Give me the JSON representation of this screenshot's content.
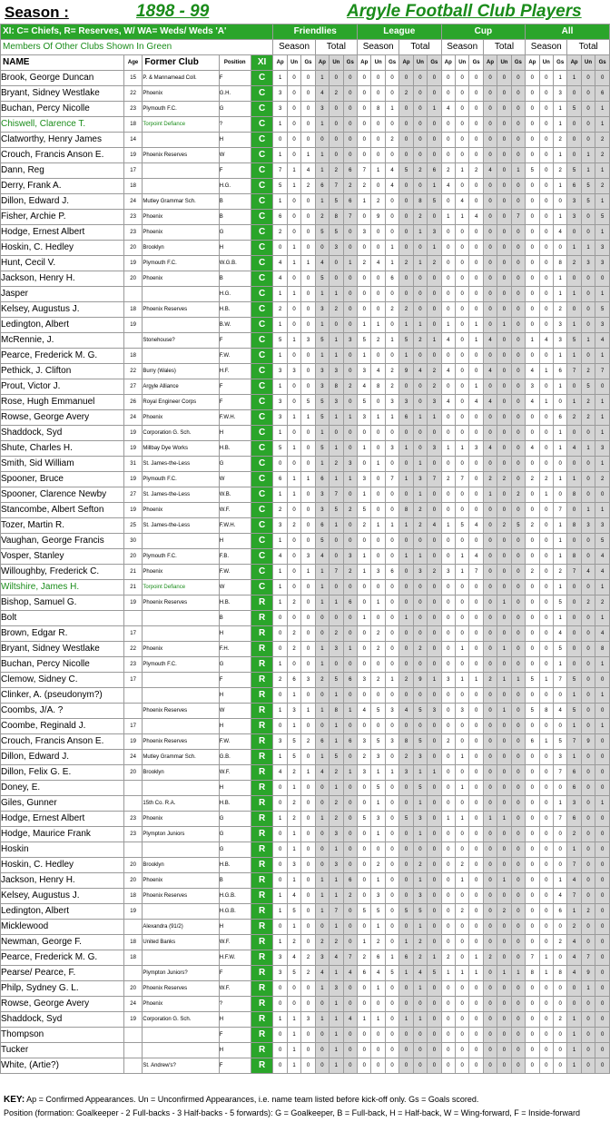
{
  "header": {
    "season_label": "Season :",
    "season_value": "1898 - 99",
    "club_title": "Argyle Football Club Players"
  },
  "legend_bar": "XI: C= Chiefs, R= Reserves, W/ WA= Weds/ Weds 'A'",
  "green_note": "Members Of Other Clubs Shown In Green",
  "sections": [
    "Friendlies",
    "League",
    "Cup",
    "All"
  ],
  "section_sub": [
    "Season",
    "Total"
  ],
  "columns": {
    "name": "NAME",
    "age": "Age",
    "club": "Former Club",
    "position": "Position",
    "xi": "XI",
    "stats": [
      "Ap",
      "Un",
      "Gs"
    ]
  },
  "colors": {
    "green": "#2aa52a",
    "green_text": "#1a8c1a",
    "total_shade": "#d4d4d4"
  },
  "rows": [
    {
      "n": "Brook, George Duncan",
      "a": "15",
      "c": "P. & Mannamead Coll.",
      "p": "F",
      "x": "C",
      "s": "100100000000000000001100"
    },
    {
      "n": "Bryant, Sidney Westlake",
      "a": "22",
      "c": "Phoenix",
      "p": "G.H.",
      "x": "C",
      "s": "300420000200000000003006"
    },
    {
      "n": "Buchan, Percy Nicolle",
      "a": "23",
      "c": "Plymouth F.C.",
      "p": "G",
      "x": "C",
      "s": "3003000810014000000015010"
    },
    {
      "n": "Chiswell, Clarence T.",
      "a": "18",
      "c": "Torpoint Defiance",
      "p": "?",
      "x": "C",
      "g": true,
      "s": "100100000000000000001001"
    },
    {
      "n": "Clatworthy, Henry James",
      "a": "14",
      "c": "",
      "p": "H",
      "x": "C",
      "s": "000000002000000000002002"
    },
    {
      "n": "Crouch, Francis Anson E.",
      "a": "19",
      "c": "Phoenix Reserves",
      "p": "W",
      "x": "C",
      "s": "101100000000000000001012"
    },
    {
      "n": "Dann, Reg",
      "a": "17",
      "c": "",
      "p": "F",
      "x": "C",
      "s": "7141267145262124015025110436"
    },
    {
      "n": "Derry, Frank A.",
      "a": "18",
      "c": "",
      "p": "H.G.",
      "x": "C",
      "s": "5126722040014000000016525"
    },
    {
      "n": "Dillon, Edward J.",
      "a": "24",
      "c": "Mutley Grammar Sch.",
      "p": "B",
      "x": "C",
      "s": "100156120085040000000351130"
    },
    {
      "n": "Fisher, Archie P.",
      "a": "23",
      "c": "Phoenix",
      "p": "B",
      "x": "C",
      "s": "6002870900201140070013055"
    },
    {
      "n": "Hodge, Ernest Albert",
      "a": "23",
      "c": "Phoenix",
      "p": "G",
      "x": "C",
      "s": "200550300013000000004001900"
    },
    {
      "n": "Hoskin, C. Hedley",
      "a": "20",
      "c": "Brooklyn",
      "p": "H",
      "x": "C",
      "s": "010030001001000000000113"
    },
    {
      "n": "Hunt, Cecil V.",
      "a": "19",
      "c": "Plymouth F.C.",
      "p": "W.G.B.",
      "x": "C",
      "s": "4114012412120000000082338"
    },
    {
      "n": "Jackson, Henry H.",
      "a": "20",
      "c": "Phoenix",
      "p": "B",
      "x": "C",
      "s": "40050000600000000000100011"
    },
    {
      "n": "Jasper",
      "a": "",
      "c": "",
      "p": "H.G.",
      "x": "C",
      "s": "110110000000000000001101"
    },
    {
      "n": "Kelsey, Augustus J.",
      "a": "18",
      "c": "Phoenix Reserves",
      "p": "H.B.",
      "x": "C",
      "s": "200320002200000000002005"
    },
    {
      "n": "Ledington, Albert",
      "a": "19",
      "c": "",
      "p": "B.W.",
      "x": "C",
      "s": "100100110110101010003103"
    },
    {
      "n": "McRennie, J.",
      "a": "",
      "c": "Stonehouse?",
      "p": "F",
      "x": "C",
      "s": "5135135215214014001435145"
    },
    {
      "n": "Pearce, Frederick M. G.",
      "a": "18",
      "c": "",
      "p": "F.W.",
      "x": "C",
      "s": "100110100100000000001101"
    },
    {
      "n": "Pethick, J. Clifton",
      "a": "22",
      "c": "Burry (Wales)",
      "p": "H.F.",
      "x": "C",
      "s": "3303303429424004004167276"
    },
    {
      "n": "Prout, Victor J.",
      "a": "27",
      "c": "Argyle Alliance",
      "p": "F",
      "x": "C",
      "s": "1003824820020010003010502511"
    },
    {
      "n": "Rose, Hugh Emmanuel",
      "a": "26",
      "c": "Royal Engineer Corps",
      "p": "F",
      "x": "C",
      "s": "30553050330340440041012100"
    },
    {
      "n": "Rowse, George Avery",
      "a": "24",
      "c": "Phoenix",
      "p": "F.W.H.",
      "x": "C",
      "s": "3115113116110000000062211"
    },
    {
      "n": "Shaddock, Syd",
      "a": "19",
      "c": "Corporation G. Sch.",
      "p": "H",
      "x": "C",
      "s": "100100000000000000001001"
    },
    {
      "n": "Shute, Charles H.",
      "a": "19",
      "c": "Millbay Dye Works",
      "p": "H.B.",
      "x": "C",
      "s": "51051010310311340040141349"
    },
    {
      "n": "Smith, Sid William",
      "a": "31",
      "c": "St. James-the-Less",
      "p": "G",
      "x": "C",
      "s": "000123010010000000000001400"
    },
    {
      "n": "Spooner, Bruce",
      "a": "19",
      "c": "Plymouth F.C.",
      "p": "W",
      "x": "C",
      "s": "6116113071372702202211021"
    },
    {
      "n": "Spooner, Clarence Newby",
      "a": "27",
      "c": "St. James-the-Less",
      "p": "W.B.",
      "x": "C",
      "s": "1103701000100001020108"
    },
    {
      "n": "Stancombe, Albert Sefton",
      "a": "19",
      "c": "Phoenix",
      "p": "W.F.",
      "x": "C",
      "s": "2003525008200000000070117"
    },
    {
      "n": "Tozer, Martin R.",
      "a": "25",
      "c": "St. James-the-Less",
      "p": "F.W.H.",
      "x": "C",
      "s": "32061021112415402520183335"
    },
    {
      "n": "Vaughan, George Francis",
      "a": "30",
      "c": "",
      "p": "H",
      "x": "C",
      "s": "100500000000000000001005"
    },
    {
      "n": "Vosper, Stanley",
      "a": "20",
      "c": "Plymouth F.C.",
      "p": "F.B.",
      "x": "C",
      "s": "403403100110014000001804"
    },
    {
      "n": "Willoughby, Frederick C.",
      "a": "21",
      "c": "Phoenix",
      "p": "F.W.",
      "x": "C",
      "s": "10117213603231700020274422"
    },
    {
      "n": "Wiltshire, James H.",
      "a": "21",
      "c": "Torpoint Defiance",
      "p": "W",
      "x": "C",
      "g": true,
      "s": "100100000000000000001001"
    },
    {
      "n": "Bishop, Samuel G.",
      "a": "19",
      "c": "Phoenix Reserves",
      "p": "H.B.",
      "x": "R",
      "s": "120116010000000010005022"
    },
    {
      "n": "Bolt",
      "a": "",
      "c": "",
      "p": "B",
      "x": "R",
      "s": "000000100100000000001001"
    },
    {
      "n": "Brown, Edgar R.",
      "a": "17",
      "c": "",
      "p": "H",
      "x": "R",
      "s": "020020020000000000004004"
    },
    {
      "n": "Bryant, Sidney Westlake",
      "a": "22",
      "c": "Phoenix",
      "p": "F.H.",
      "x": "R",
      "s": "020131020020010010005008"
    },
    {
      "n": "Buchan, Percy Nicolle",
      "a": "23",
      "c": "Plymouth F.C.",
      "p": "G",
      "x": "R",
      "s": "100100000000000000001001"
    },
    {
      "n": "Clemow, Sidney C.",
      "a": "17",
      "c": "",
      "p": "F",
      "x": "R",
      "s": "2632563212913112115175"
    },
    {
      "n": "Clinker, A. (pseudonym?)",
      "a": "",
      "c": "",
      "p": "H",
      "x": "R",
      "s": "010010000000000000000101"
    },
    {
      "n": "Coombs, J/A. ?",
      "a": "",
      "c": "Phoenix Reserves",
      "p": "W",
      "x": "R",
      "s": "1311814534530300105845"
    },
    {
      "n": "Coombe, Reginald J.",
      "a": "17",
      "c": "",
      "p": "H",
      "x": "R",
      "s": "010010000000000000000101"
    },
    {
      "n": "Crouch, Francis Anson E.",
      "a": "19",
      "c": "Phoenix Reserves",
      "p": "F.W.",
      "x": "R",
      "s": "35261635385020000061579"
    },
    {
      "n": "Dillon, Edward J.",
      "a": "24",
      "c": "Mutley Grammar Sch.",
      "p": "G.B.",
      "x": "R",
      "s": "150150230230010000003100"
    },
    {
      "n": "Dillon, Felix G. E.",
      "a": "20",
      "c": "Brooklyn",
      "p": "W.F.",
      "x": "R",
      "s": "4214213113110000000076"
    },
    {
      "n": "Doney, E.",
      "a": "",
      "c": "",
      "p": "H",
      "x": "R",
      "s": "010010050050010000000600"
    },
    {
      "n": "Giles, Gunner",
      "a": "",
      "c": "15th Co. R.A.",
      "p": "H.B.",
      "x": "R",
      "s": "020020010010000000001301"
    },
    {
      "n": "Hodge, Ernest Albert",
      "a": "23",
      "c": "Phoenix",
      "p": "G",
      "x": "R",
      "s": "120120530530110110007600"
    },
    {
      "n": "Hodge, Maurice Frank",
      "a": "23",
      "c": "Plympton Juniors",
      "p": "G",
      "x": "R",
      "s": "010030010010000000000200"
    },
    {
      "n": "Hoskin",
      "a": "",
      "c": "",
      "p": "G",
      "x": "R",
      "s": "010010000000000000000100"
    },
    {
      "n": "Hoskin, C. Hedley",
      "a": "20",
      "c": "Brooklyn",
      "p": "H.B.",
      "x": "R",
      "s": "030030020020020000000700"
    },
    {
      "n": "Jackson, Henry H.",
      "a": "20",
      "c": "Phoenix",
      "p": "B",
      "x": "R",
      "s": "010116010010010010001400"
    },
    {
      "n": "Kelsey, Augustus J.",
      "a": "18",
      "c": "Phoenix Reserves",
      "p": "H.G.B.",
      "x": "R",
      "s": "140112030030000000004700"
    },
    {
      "n": "Ledington, Albert",
      "a": "19",
      "c": "",
      "p": "H.G.B.",
      "x": "R",
      "s": "150170550550020020006120"
    },
    {
      "n": "Micklewood",
      "a": "",
      "c": "Alexandra (91/2)",
      "p": "H",
      "x": "R",
      "s": "010010010010000000000200"
    },
    {
      "n": "Newman, George F.",
      "a": "18",
      "c": "United Banks",
      "p": "W.F.",
      "x": "R",
      "s": "120220120120000000002400"
    },
    {
      "n": "Pearce, Frederick M. G.",
      "a": "18",
      "c": "",
      "p": "H.F.W.",
      "x": "R",
      "s": "34234726162120120071047"
    },
    {
      "n": "Pearse/ Pearce, F.",
      "a": "",
      "c": "Plympton Juniors?",
      "p": "F",
      "x": "R",
      "s": "35241464514511101181849"
    },
    {
      "n": "Philp, Sydney G. L.",
      "a": "20",
      "c": "Phoenix Reserves",
      "p": "W.F.",
      "x": "R",
      "s": "0001300100100000000000100"
    },
    {
      "n": "Rowse, George Avery",
      "a": "24",
      "c": "Phoenix",
      "p": "?",
      "x": "R",
      "s": "000010000000000000000000"
    },
    {
      "n": "Shaddock, Syd",
      "a": "19",
      "c": "Corporation G. Sch.",
      "p": "H",
      "x": "R",
      "s": "113114110110000000002100"
    },
    {
      "n": "Thompson",
      "a": "",
      "c": "",
      "p": "F",
      "x": "R",
      "s": "010010000000000000000100"
    },
    {
      "n": "Tucker",
      "a": "",
      "c": "",
      "p": "H",
      "x": "R",
      "s": "010010000000000000000100"
    },
    {
      "n": "White, (Artie?)",
      "a": "",
      "c": "St. Andrew's?",
      "p": "F",
      "x": "R",
      "s": "010010000000000000000100"
    }
  ],
  "key": {
    "title": "KEY:",
    "line1": "Ap = Confirmed Appearances. Un = Unconfirmed Appearances, i.e. name team listed before kick-off only. Gs = Goals scored.",
    "line2": "Position (formation: Goalkeeper - 2 Full-backs - 3 Half-backs - 5 forwards): G = Goalkeeper, B = Full-back, H = Half-back, W = Wing-forward, F = Inside-forward"
  }
}
